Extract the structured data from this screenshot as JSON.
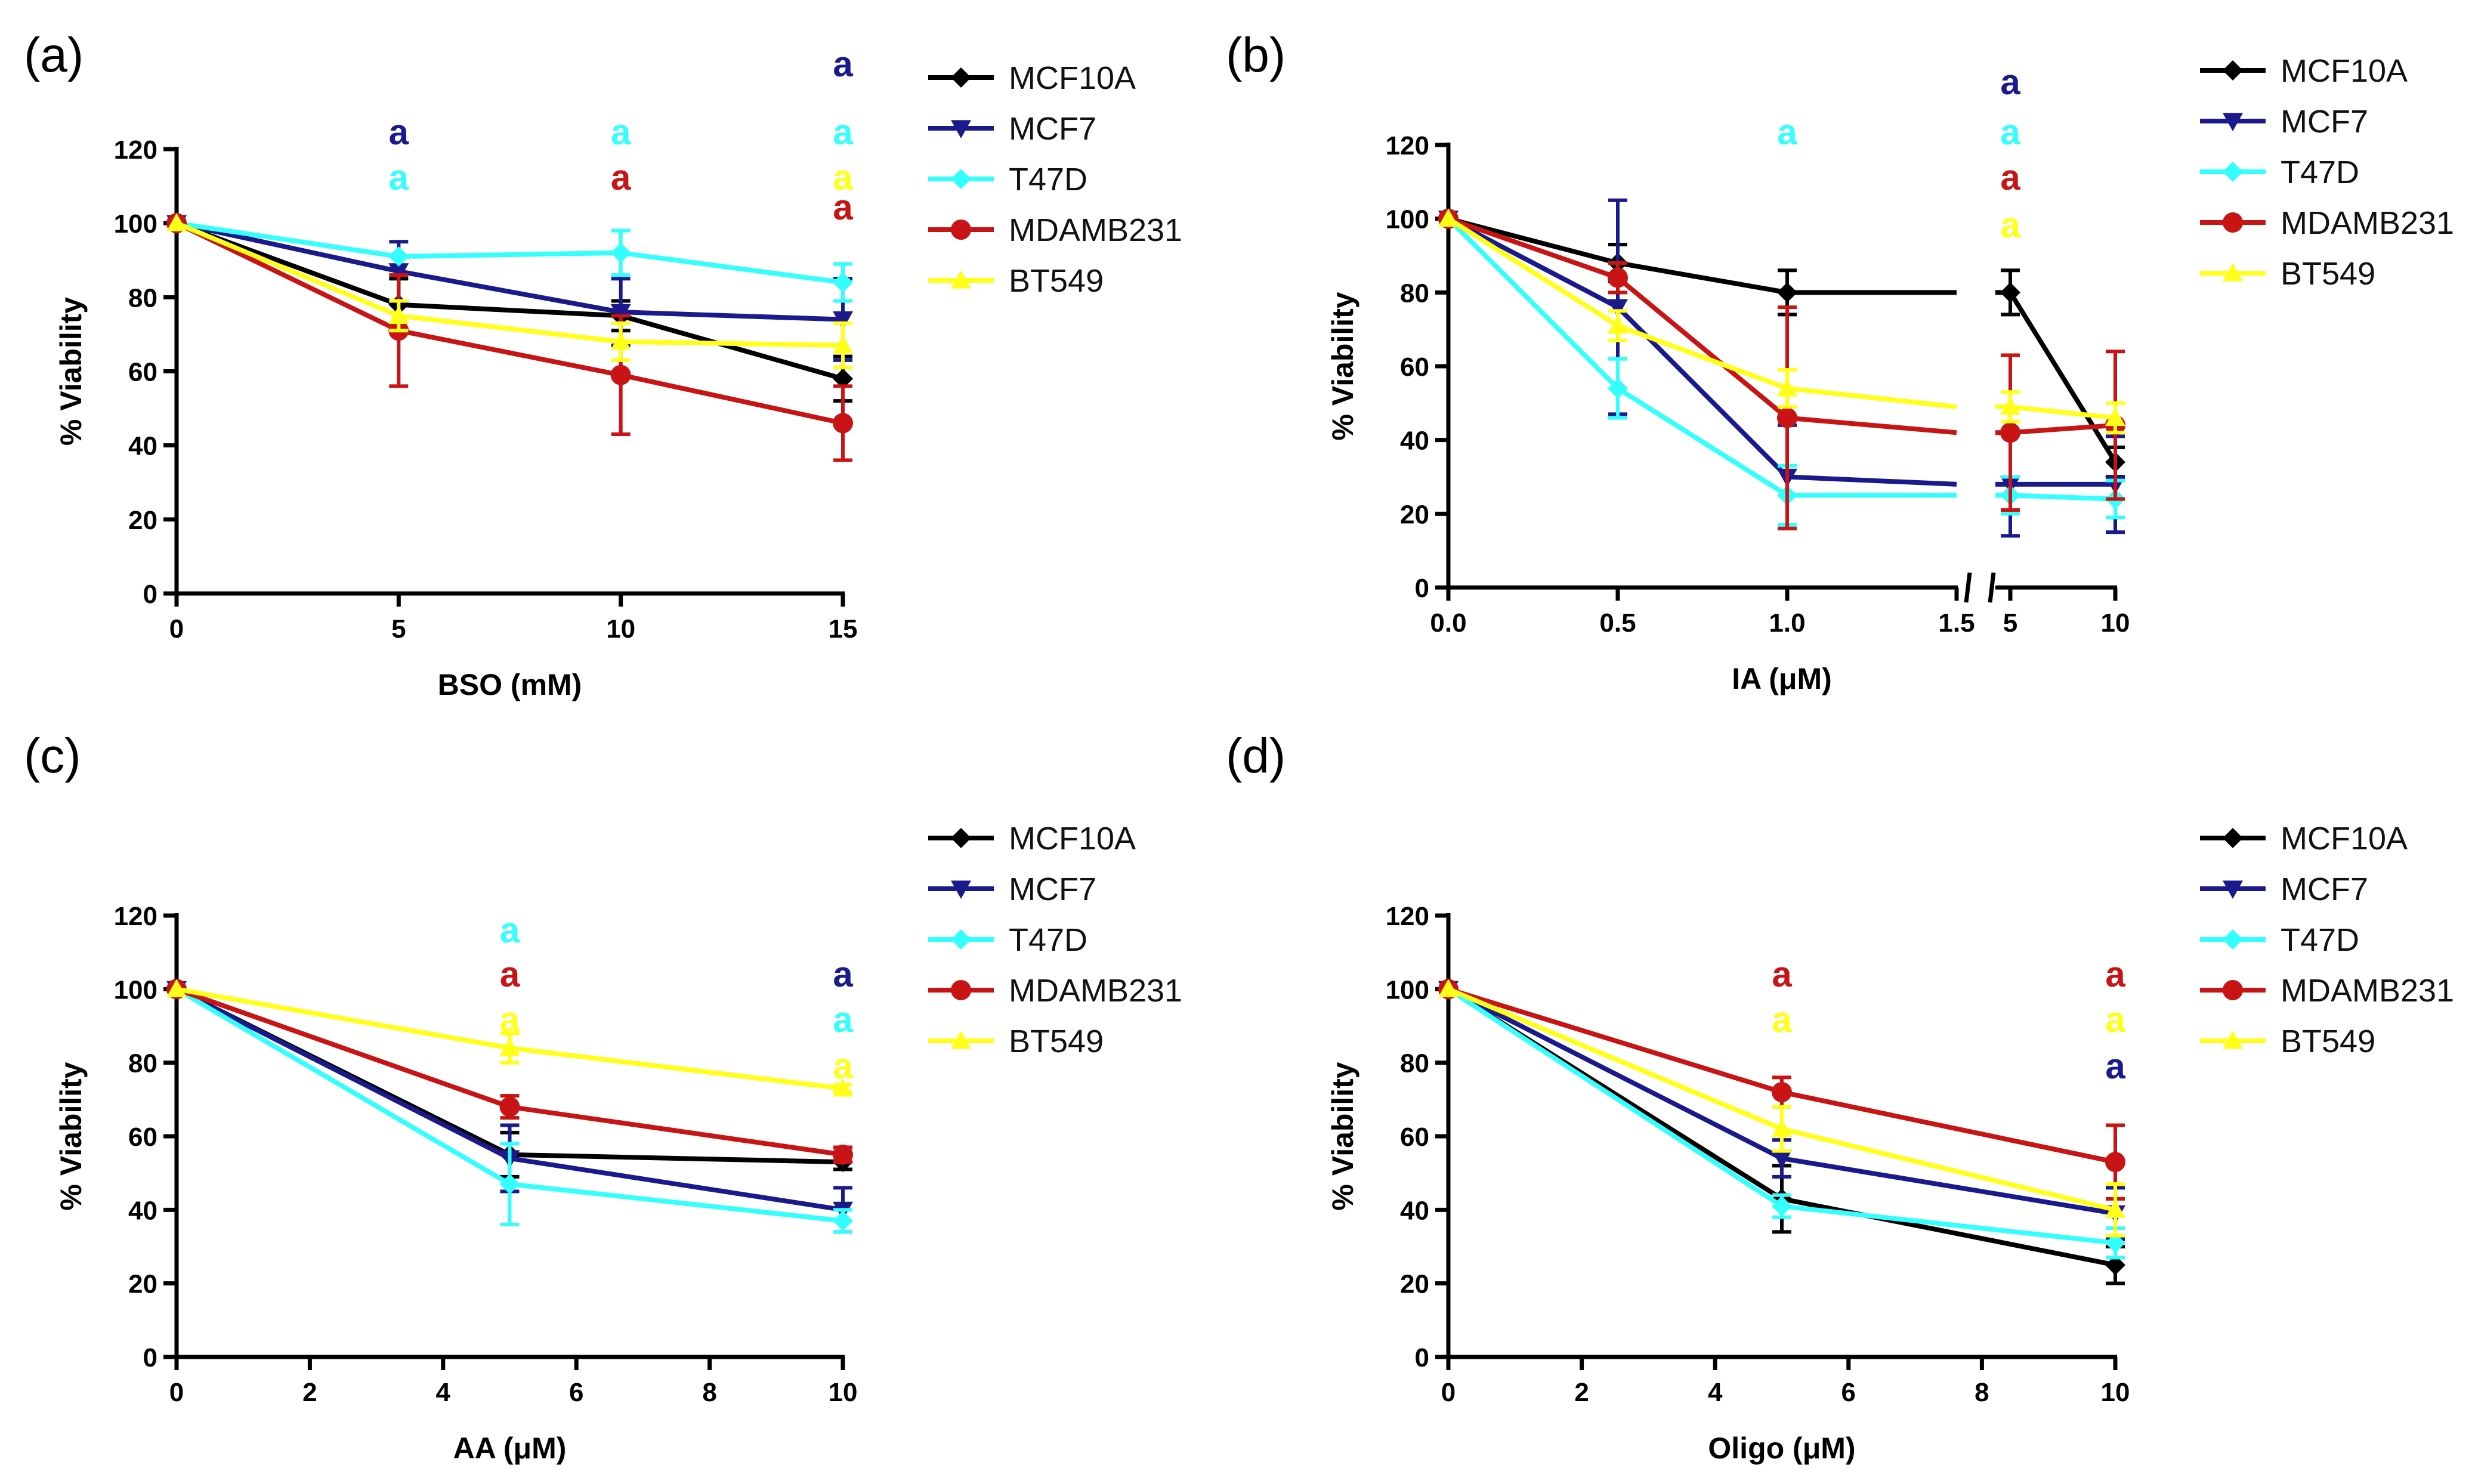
{
  "colors": {
    "MCF10A": "#000000",
    "MCF7": "#1a1a8c",
    "T47D": "#33ffff",
    "MDAMB231": "#c81414",
    "BT549": "#ffff1a",
    "axis": "#000000"
  },
  "legend": [
    "MCF10A",
    "MCF7",
    "T47D",
    "MDAMB231",
    "BT549"
  ],
  "chart_data": [
    {
      "panel": "(a)",
      "type": "line",
      "xlabel": "BSO (mM)",
      "ylabel": "% Viability",
      "xlim": [
        0,
        15
      ],
      "ylim": [
        0,
        120
      ],
      "x": [
        0,
        5,
        10,
        15
      ],
      "x_tick_labels": [
        "0",
        "5",
        "10",
        "15"
      ],
      "y_tick_labels": [
        "0",
        "20",
        "40",
        "60",
        "80",
        "100",
        "120"
      ],
      "series": [
        {
          "name": "MCF10A",
          "values": [
            100,
            78,
            75,
            58
          ],
          "errors": [
            0,
            7,
            4,
            6
          ]
        },
        {
          "name": "MCF7",
          "values": [
            100,
            87,
            76,
            74
          ],
          "errors": [
            0,
            8,
            9,
            11
          ]
        },
        {
          "name": "T47D",
          "values": [
            100,
            91,
            92,
            84
          ],
          "errors": [
            0,
            0,
            6,
            5
          ]
        },
        {
          "name": "MDAMB231",
          "values": [
            100,
            71,
            59,
            46
          ],
          "errors": [
            0,
            15,
            16,
            10
          ]
        },
        {
          "name": "BT549",
          "values": [
            100,
            75,
            68,
            67
          ],
          "errors": [
            0,
            4,
            5,
            6
          ]
        }
      ],
      "annotations": [
        {
          "x": 5,
          "text": "a",
          "color": "MCF7",
          "row": 1
        },
        {
          "x": 5,
          "text": "a",
          "color": "T47D",
          "row": 2
        },
        {
          "x": 10,
          "text": "a",
          "color": "T47D",
          "row": 1
        },
        {
          "x": 10,
          "text": "a",
          "color": "MDAMB231",
          "row": 2
        },
        {
          "x": 15,
          "text": "a",
          "color": "MCF7",
          "row": 0
        },
        {
          "x": 15,
          "text": "a",
          "color": "T47D",
          "row": 1
        },
        {
          "x": 15,
          "text": "a",
          "color": "BT549",
          "row": 2
        },
        {
          "x": 15,
          "text": "a",
          "color": "MDAMB231",
          "row": 3
        }
      ]
    },
    {
      "panel": "(b)",
      "type": "line",
      "xlabel": "IA (μM)",
      "ylabel": "% Viability",
      "xlim": [
        0,
        10
      ],
      "x_axis_break": {
        "left_range": [
          0,
          1.5
        ],
        "right_range": [
          5,
          10
        ]
      },
      "ylim": [
        0,
        120
      ],
      "x": [
        0,
        0.5,
        1.0,
        5,
        10
      ],
      "x_tick_labels": [
        "0.0",
        "0.5",
        "1.0",
        "1.5",
        "5",
        "10"
      ],
      "y_tick_labels": [
        "0",
        "20",
        "40",
        "60",
        "80",
        "100",
        "120"
      ],
      "series": [
        {
          "name": "MCF10A",
          "values": [
            100,
            88,
            80,
            80,
            34
          ],
          "errors": [
            0,
            5,
            6,
            6,
            4
          ]
        },
        {
          "name": "MCF7",
          "values": [
            100,
            76,
            30,
            28,
            28
          ],
          "errors": [
            0,
            29,
            14,
            14,
            13
          ]
        },
        {
          "name": "T47D",
          "values": [
            100,
            54,
            25,
            25,
            24
          ],
          "errors": [
            0,
            8,
            8,
            5,
            5
          ]
        },
        {
          "name": "MDAMB231",
          "values": [
            100,
            84,
            46,
            42,
            44
          ],
          "errors": [
            0,
            4,
            30,
            21,
            20
          ]
        },
        {
          "name": "BT549",
          "values": [
            100,
            71,
            54,
            49,
            46
          ],
          "errors": [
            0,
            4,
            5,
            4,
            4
          ]
        }
      ],
      "annotations": [
        {
          "x": 1.0,
          "text": "a",
          "color": "T47D",
          "row": 1
        },
        {
          "x": 5,
          "text": "a",
          "color": "MCF7",
          "row": 0
        },
        {
          "x": 5,
          "text": "a",
          "color": "T47D",
          "row": 1
        },
        {
          "x": 5,
          "text": "a",
          "color": "MDAMB231",
          "row": 2
        },
        {
          "x": 5,
          "text": "a",
          "color": "BT549",
          "row": 3
        }
      ]
    },
    {
      "panel": "(c)",
      "type": "line",
      "xlabel": "AA (μM)",
      "ylabel": "% Viability",
      "xlim": [
        0,
        10
      ],
      "ylim": [
        0,
        120
      ],
      "x": [
        0,
        5,
        10
      ],
      "x_tick_labels": [
        "0",
        "2",
        "4",
        "6",
        "8",
        "10"
      ],
      "y_tick_labels": [
        "0",
        "20",
        "40",
        "60",
        "80",
        "100",
        "120"
      ],
      "series": [
        {
          "name": "MCF10A",
          "values": [
            100,
            55,
            53
          ],
          "errors": [
            0,
            6,
            2
          ]
        },
        {
          "name": "MCF7",
          "values": [
            100,
            54,
            40
          ],
          "errors": [
            0,
            9,
            6
          ]
        },
        {
          "name": "T47D",
          "values": [
            100,
            47,
            37
          ],
          "errors": [
            0,
            11,
            3
          ]
        },
        {
          "name": "MDAMB231",
          "values": [
            100,
            68,
            55
          ],
          "errors": [
            0,
            3,
            2
          ]
        },
        {
          "name": "BT549",
          "values": [
            100,
            84,
            73
          ],
          "errors": [
            0,
            4,
            1
          ]
        }
      ],
      "annotations": [
        {
          "x": 5,
          "text": "a",
          "color": "T47D",
          "row": 1
        },
        {
          "x": 5,
          "text": "a",
          "color": "MDAMB231",
          "row": 2
        },
        {
          "x": 5,
          "text": "a",
          "color": "BT549",
          "row": 3
        },
        {
          "x": 10,
          "text": "a",
          "color": "MCF7",
          "row": 2
        },
        {
          "x": 10,
          "text": "a",
          "color": "T47D",
          "row": 3
        },
        {
          "x": 10,
          "text": "a",
          "color": "BT549",
          "row": 4
        }
      ]
    },
    {
      "panel": "(d)",
      "type": "line",
      "xlabel": "Oligo (μM)",
      "ylabel": "% Viability",
      "xlim": [
        0,
        10
      ],
      "ylim": [
        0,
        120
      ],
      "x": [
        0,
        5,
        10
      ],
      "x_tick_labels": [
        "0",
        "2",
        "4",
        "6",
        "8",
        "10"
      ],
      "y_tick_labels": [
        "0",
        "20",
        "40",
        "60",
        "80",
        "100",
        "120"
      ],
      "series": [
        {
          "name": "MCF10A",
          "values": [
            100,
            43,
            25
          ],
          "errors": [
            0,
            9,
            5
          ]
        },
        {
          "name": "MCF7",
          "values": [
            100,
            54,
            39
          ],
          "errors": [
            0,
            5,
            7
          ]
        },
        {
          "name": "T47D",
          "values": [
            100,
            41,
            31
          ],
          "errors": [
            0,
            3,
            4
          ]
        },
        {
          "name": "MDAMB231",
          "values": [
            100,
            72,
            53
          ],
          "errors": [
            0,
            4,
            10
          ]
        },
        {
          "name": "BT549",
          "values": [
            100,
            62,
            40
          ],
          "errors": [
            0,
            6,
            7
          ]
        }
      ],
      "annotations": [
        {
          "x": 5,
          "text": "a",
          "color": "MDAMB231",
          "row": 2
        },
        {
          "x": 5,
          "text": "a",
          "color": "BT549",
          "row": 3
        },
        {
          "x": 10,
          "text": "a",
          "color": "MDAMB231",
          "row": 2
        },
        {
          "x": 10,
          "text": "a",
          "color": "BT549",
          "row": 3
        },
        {
          "x": 10,
          "text": "a",
          "color": "MCF7",
          "row": 4
        }
      ]
    }
  ]
}
